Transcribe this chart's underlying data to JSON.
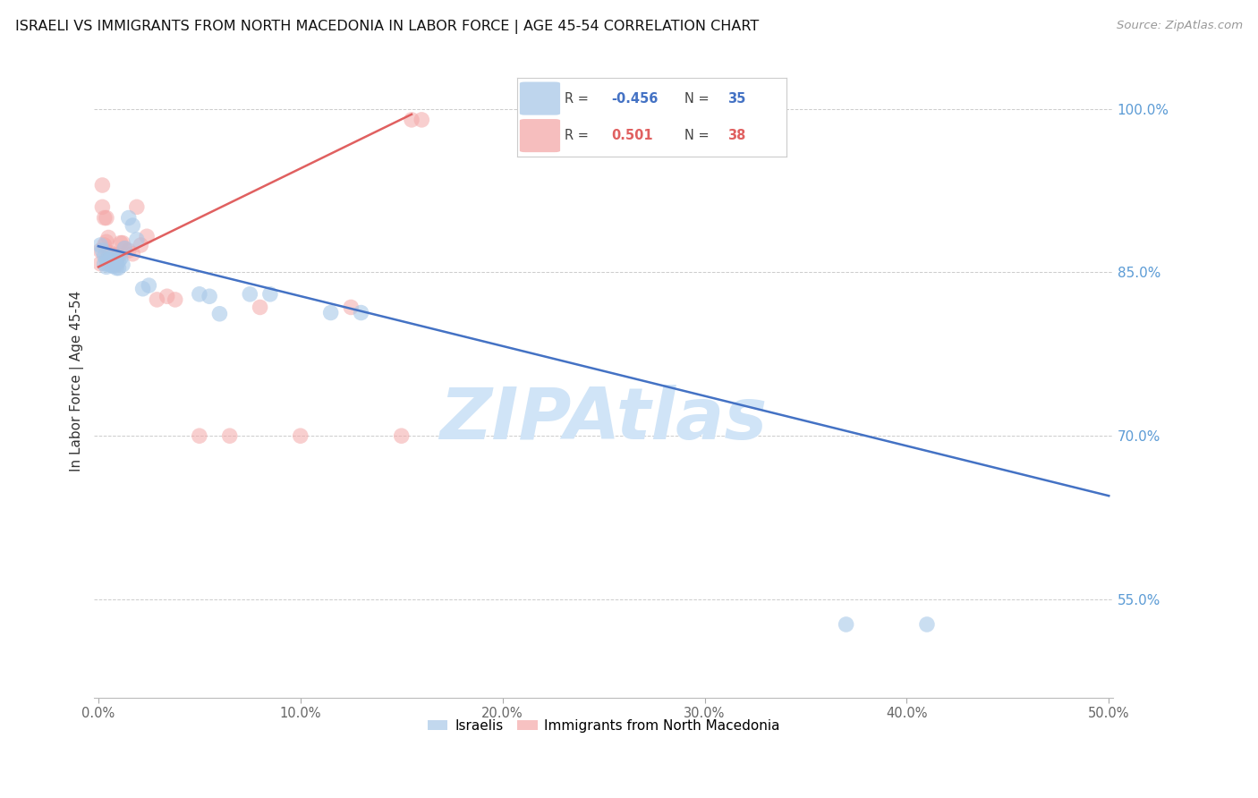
{
  "title": "ISRAELI VS IMMIGRANTS FROM NORTH MACEDONIA IN LABOR FORCE | AGE 45-54 CORRELATION CHART",
  "source": "Source: ZipAtlas.com",
  "ylabel": "In Labor Force | Age 45-54",
  "xlim": [
    -0.002,
    0.502
  ],
  "ylim": [
    0.46,
    1.04
  ],
  "xticks": [
    0.0,
    0.1,
    0.2,
    0.3,
    0.4,
    0.5
  ],
  "xticklabels": [
    "0.0%",
    "10.0%",
    "20.0%",
    "30.0%",
    "40.0%",
    "50.0%"
  ],
  "yticks_right": [
    0.55,
    0.7,
    0.85,
    1.0
  ],
  "yticklabels_right": [
    "55.0%",
    "70.0%",
    "85.0%",
    "100.0%"
  ],
  "blue_color": "#a8c8e8",
  "pink_color": "#f4a8a8",
  "trend_blue": "#4472c4",
  "trend_pink": "#e06060",
  "watermark": "ZIPAtlas",
  "watermark_color": "#d0e4f7",
  "blue_points_x": [
    0.001,
    0.002,
    0.003,
    0.003,
    0.004,
    0.004,
    0.005,
    0.005,
    0.006,
    0.006,
    0.007,
    0.007,
    0.008,
    0.008,
    0.009,
    0.009,
    0.01,
    0.01,
    0.011,
    0.012,
    0.013,
    0.015,
    0.017,
    0.019,
    0.022,
    0.025,
    0.05,
    0.055,
    0.06,
    0.075,
    0.085,
    0.115,
    0.13,
    0.37,
    0.41
  ],
  "blue_points_y": [
    0.875,
    0.87,
    0.865,
    0.858,
    0.862,
    0.855,
    0.862,
    0.857,
    0.863,
    0.857,
    0.862,
    0.856,
    0.862,
    0.856,
    0.86,
    0.854,
    0.86,
    0.854,
    0.863,
    0.857,
    0.872,
    0.9,
    0.893,
    0.88,
    0.835,
    0.838,
    0.83,
    0.828,
    0.812,
    0.83,
    0.83,
    0.813,
    0.813,
    0.527,
    0.527
  ],
  "pink_points_x": [
    0.001,
    0.001,
    0.002,
    0.002,
    0.003,
    0.003,
    0.004,
    0.004,
    0.005,
    0.005,
    0.006,
    0.006,
    0.007,
    0.007,
    0.008,
    0.008,
    0.009,
    0.009,
    0.01,
    0.011,
    0.012,
    0.013,
    0.015,
    0.017,
    0.019,
    0.021,
    0.024,
    0.029,
    0.034,
    0.038,
    0.05,
    0.065,
    0.08,
    0.1,
    0.125,
    0.15,
    0.155,
    0.16
  ],
  "pink_points_y": [
    0.87,
    0.858,
    0.93,
    0.91,
    0.9,
    0.875,
    0.9,
    0.878,
    0.882,
    0.868,
    0.868,
    0.863,
    0.865,
    0.86,
    0.866,
    0.857,
    0.863,
    0.857,
    0.865,
    0.877,
    0.877,
    0.872,
    0.87,
    0.867,
    0.91,
    0.875,
    0.883,
    0.825,
    0.828,
    0.825,
    0.7,
    0.7,
    0.818,
    0.7,
    0.818,
    0.7,
    0.99,
    0.99
  ],
  "blue_trend_x": [
    0.0,
    0.5
  ],
  "blue_trend_y": [
    0.874,
    0.645
  ],
  "pink_trend_x": [
    0.0,
    0.155
  ],
  "pink_trend_y": [
    0.855,
    0.995
  ],
  "legend_R_blue": "-0.456",
  "legend_N_blue": "35",
  "legend_R_pink": "0.501",
  "legend_N_pink": "38"
}
